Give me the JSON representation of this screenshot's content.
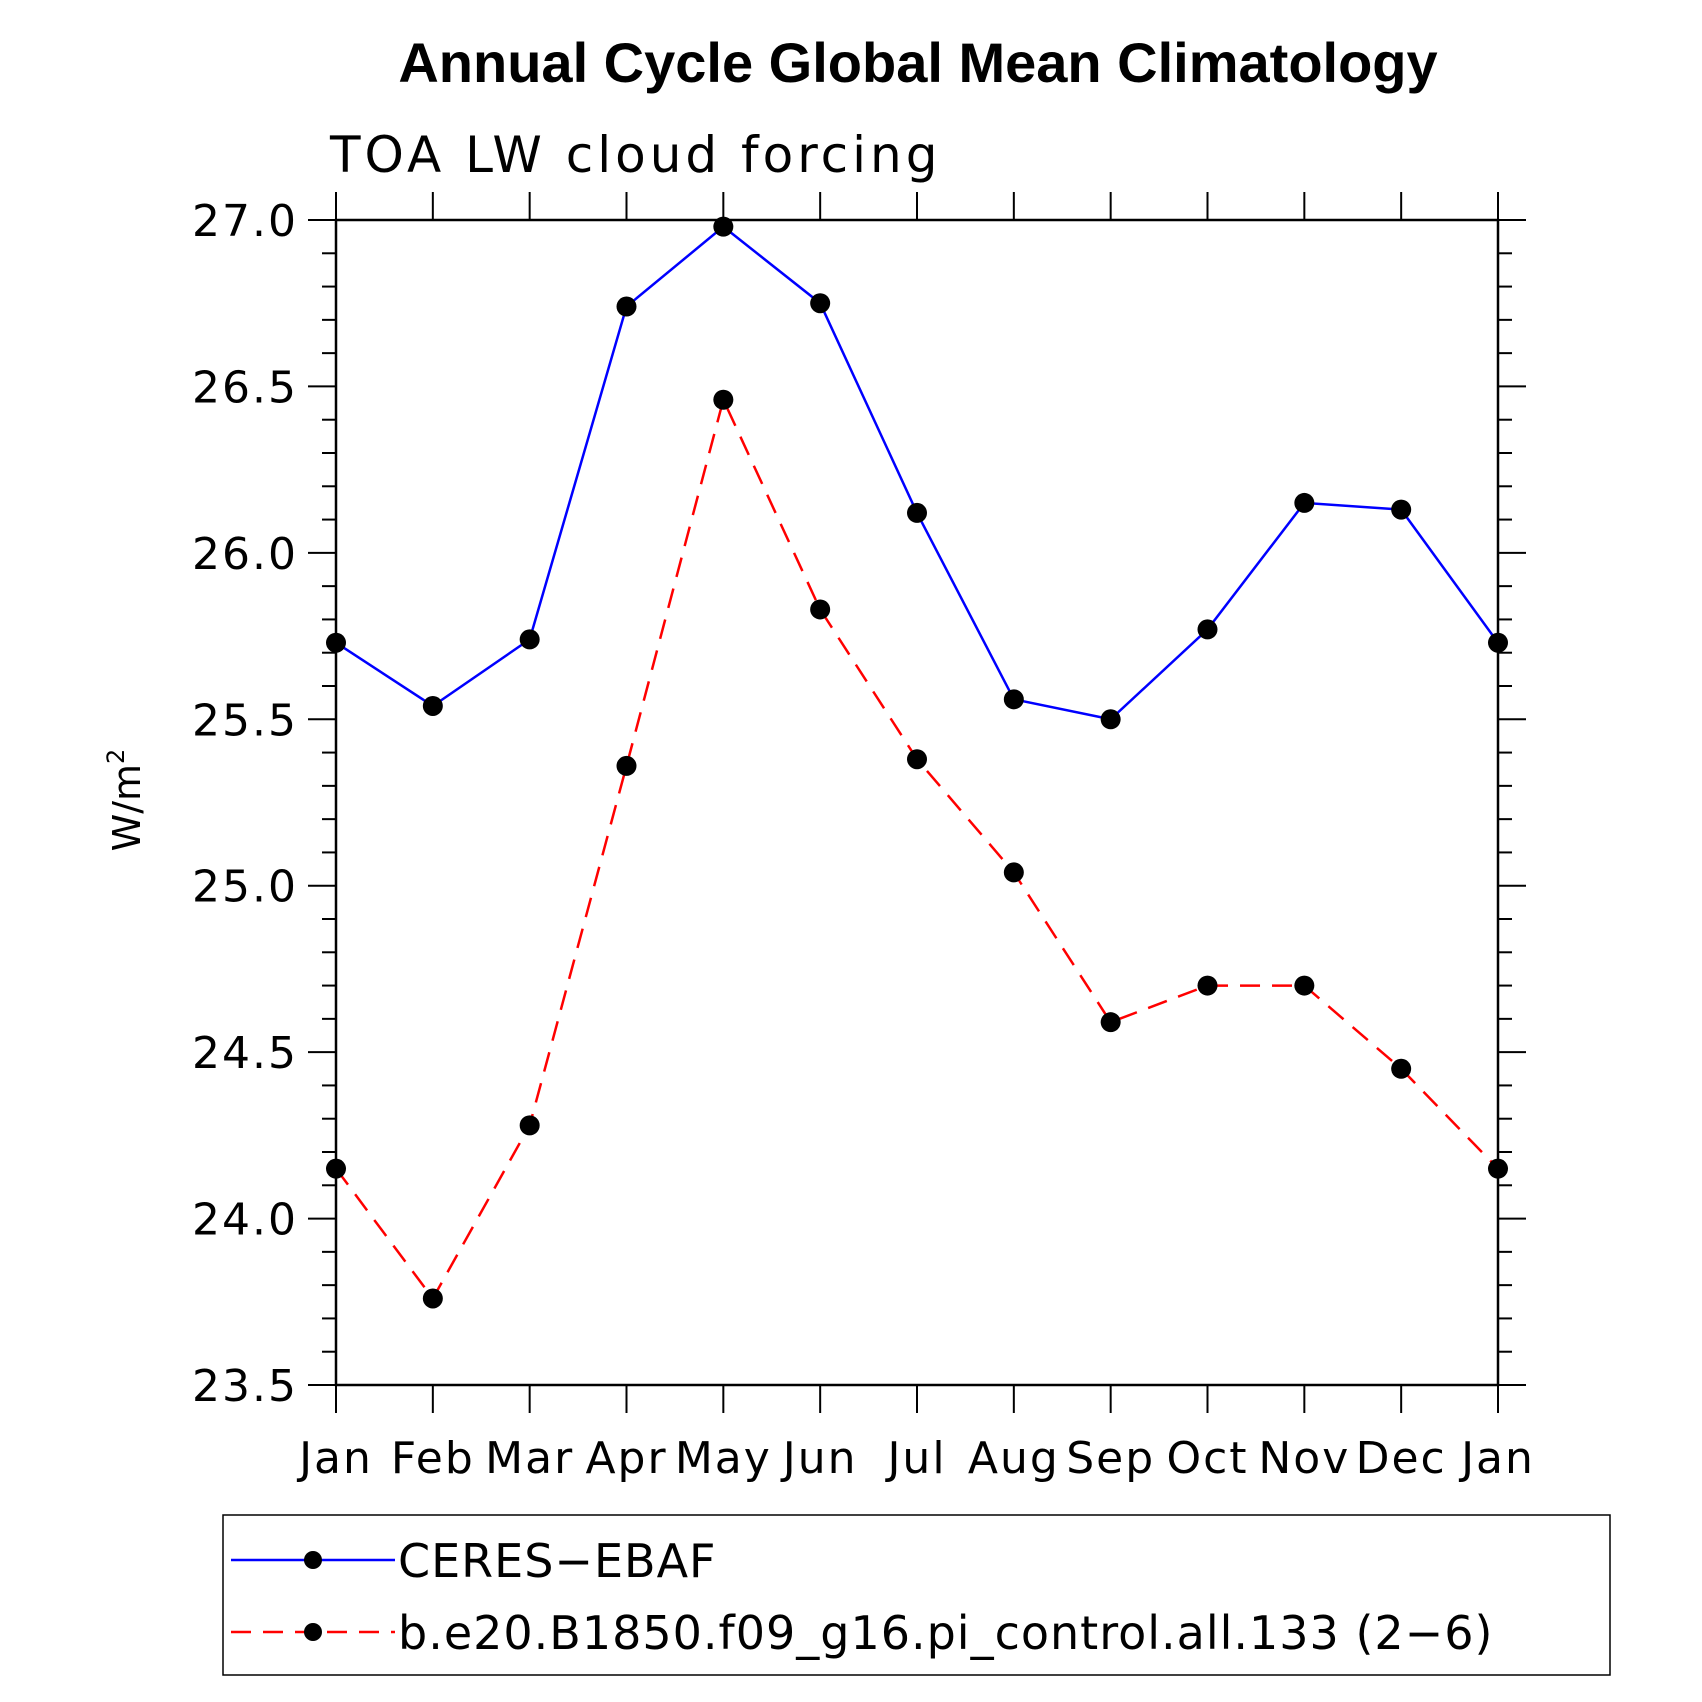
{
  "chart_data": {
    "type": "line",
    "title": "Annual Cycle Global Mean Climatology",
    "subtitle": "TOA LW cloud forcing",
    "ylabel": "W/m",
    "ylabel_superscript": "2",
    "ylim": [
      23.5,
      27.0
    ],
    "yticks": [
      23.5,
      24.0,
      24.5,
      25.0,
      25.5,
      26.0,
      26.5,
      27.0
    ],
    "ytick_labels": [
      "23.5",
      "24.0",
      "24.5",
      "25.0",
      "25.5",
      "26.0",
      "26.5",
      "27.0"
    ],
    "categories": [
      "Jan",
      "Feb",
      "Mar",
      "Apr",
      "May",
      "Jun",
      "Jul",
      "Aug",
      "Sep",
      "Oct",
      "Nov",
      "Dec",
      "Jan"
    ],
    "series": [
      {
        "name": "CERES−EBAF",
        "color": "#0000ff",
        "dash": "solid",
        "values": [
          25.73,
          25.54,
          25.74,
          26.74,
          26.98,
          26.75,
          26.12,
          25.56,
          25.5,
          25.77,
          26.15,
          26.13,
          25.73
        ]
      },
      {
        "name": "b.e20.B1850.f09_g16.pi_control.all.133 (2−6)",
        "color": "#ff0000",
        "dash": "dashed",
        "values": [
          24.15,
          23.76,
          24.28,
          25.36,
          26.46,
          25.83,
          25.38,
          25.04,
          24.59,
          24.7,
          24.7,
          24.45,
          24.15
        ]
      }
    ],
    "marker_color": "#000000",
    "legend_position": "bottom"
  }
}
